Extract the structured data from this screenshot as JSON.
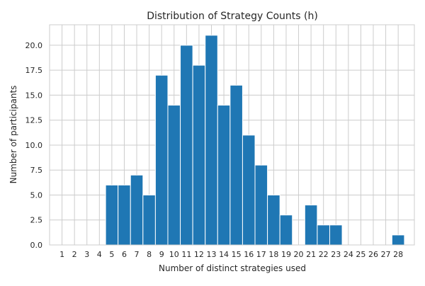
{
  "chart_data": {
    "type": "bar",
    "title": "Distribution of Strategy Counts (h)",
    "xlabel": "Number of distinct strategies used",
    "ylabel": "Number of participants",
    "categories": [
      1,
      2,
      3,
      4,
      5,
      6,
      7,
      8,
      9,
      10,
      11,
      12,
      13,
      14,
      15,
      16,
      17,
      18,
      19,
      20,
      21,
      22,
      23,
      24,
      25,
      26,
      27,
      28
    ],
    "values": [
      0,
      0,
      0,
      0,
      6,
      6,
      7,
      5,
      17,
      14,
      20,
      18,
      21,
      14,
      16,
      11,
      8,
      5,
      3,
      0,
      4,
      2,
      2,
      0,
      0,
      0,
      0,
      1
    ],
    "x_tick_labels": [
      "1",
      "2",
      "3",
      "4",
      "5",
      "6",
      "7",
      "8",
      "9",
      "10",
      "11",
      "12",
      "13",
      "14",
      "15",
      "16",
      "17",
      "18",
      "19",
      "20",
      "21",
      "22",
      "23",
      "24",
      "25",
      "26",
      "27",
      "28"
    ],
    "y_ticks": [
      0,
      2.5,
      5,
      7.5,
      10,
      12.5,
      15,
      17.5,
      20
    ],
    "y_tick_labels": [
      "0.0",
      "2.5",
      "5.0",
      "7.5",
      "10.0",
      "12.5",
      "15.0",
      "17.5",
      "20.0"
    ],
    "ylim": [
      0,
      22.05
    ],
    "xlim": [
      0,
      29.3
    ],
    "grid": true,
    "bar_color": "#1f77b4",
    "grid_color": "#cccccc"
  }
}
